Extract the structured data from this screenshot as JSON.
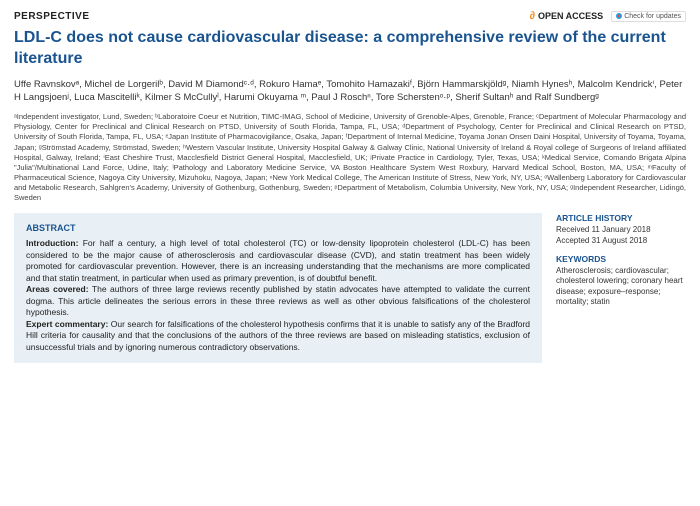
{
  "header": {
    "perspective": "PERSPECTIVE",
    "open_access": "OPEN ACCESS",
    "check_updates": "Check for updates"
  },
  "title": "LDL-C does not cause cardiovascular disease: a comprehensive review of the current literature",
  "authors": "Uffe Ravnskovᵃ, Michel de Lorgerilᵇ, David M Diamondᶜ·ᵈ, Rokuro Hamaᵉ, Tomohito Hamazakiᶠ, Björn Hammarskjöldᵍ, Niamh Hynesʰ, Malcolm Kendrickⁱ, Peter H Langsjoenʲ, Luca Mascitelliᵏ, Kilmer S McCullyˡ, Harumi Okuyama ᵐ, Paul J Roschⁿ, Tore Scherstenᵒ·ᵖ, Sherif Sultanʰ and Ralf Sundbergᵍ",
  "affiliations": "ᵃIndependent investigator, Lund, Sweden; ᵇLaboratoire Coeur et Nutrition, TIMC-IMAG, School of Medicine, University of Grenoble-Alpes, Grenoble, France; ᶜDepartment of Molecular Pharmacology and Physiology, Center for Preclinical and Clinical Research on PTSD, University of South Florida, Tampa, FL, USA; ᵈDepartment of Psychology, Center for Preclinical and Clinical Research on PTSD, University of South Florida, Tampa, FL, USA; ᵉJapan Institute of Pharmacovigilance, Osaka, Japan; ᶠDepartment of Internal Medicine, Toyama Jonan Onsen Daini Hospital, University of Toyama, Toyama, Japan; ᵍStrömstad Academy, Strömstad, Sweden; ʰWestern Vascular Institute, University Hospital Galway & Galway Clinic, National University of Ireland & Royal college of Surgeons of Ireland affiliated Hospital, Galway, Ireland; ⁱEast Cheshire Trust, Macclesfield District General Hospital, Macclesfield, UK; ʲPrivate Practice in Cardiology, Tyler, Texas, USA; ᵏMedical Service, Comando Brigata Alpina \"Julia\"/Multinational Land Force, Udine, Italy; ˡPathology and Laboratory Medicine Service, VA Boston Healthcare System West Roxbury, Harvard Medical School, Boston, MA, USA; ᵐFaculty of Pharmaceutical Science, Nagoya City University, Mizuhoku, Nagoya, Japan; ⁿNew York Medical College, The American Institute of Stress, New York, NY, USA; ᵒWallenberg Laboratory for Cardiovascular and Metabolic Research, Sahlgren's Academy, University of Gothenburg, Gothenburg, Sweden; ᵖDepartment of Metabolism, Columbia University, New York, NY, USA; ᵍIndependent Researcher, Lidingö, Sweden",
  "abstract": {
    "label": "ABSTRACT",
    "intro_label": "Introduction:",
    "intro": " For half a century, a high level of total cholesterol (TC) or low-density lipoprotein cholesterol (LDL-C) has been considered to be the major cause of atherosclerosis and cardiovascular disease (CVD), and statin treatment has been widely promoted for cardiovascular prevention. However, there is an increasing understanding that the mechanisms are more complicated and that statin treatment, in particular when used as primary prevention, is of doubtful benefit.",
    "areas_label": "Areas covered:",
    "areas": " The authors of three large reviews recently published by statin advocates have attempted to validate the current dogma. This article delineates the serious errors in these three reviews as well as other obvious falsifications of the cholesterol hypothesis.",
    "expert_label": "Expert commentary:",
    "expert": " Our search for falsifications of the cholesterol hypothesis confirms that it is unable to satisfy any of the Bradford Hill criteria for causality and that the conclusions of the authors of the three reviews are based on misleading statistics, exclusion of unsuccessful trials and by ignoring numerous contradictory observations."
  },
  "history": {
    "heading": "ARTICLE HISTORY",
    "received": "Received 11 January 2018",
    "accepted": "Accepted 31 August 2018"
  },
  "keywords": {
    "heading": "KEYWORDS",
    "text": "Atherosclerosis; cardiovascular; cholesterol lowering; coronary heart disease; exposure–response; mortality; statin"
  }
}
